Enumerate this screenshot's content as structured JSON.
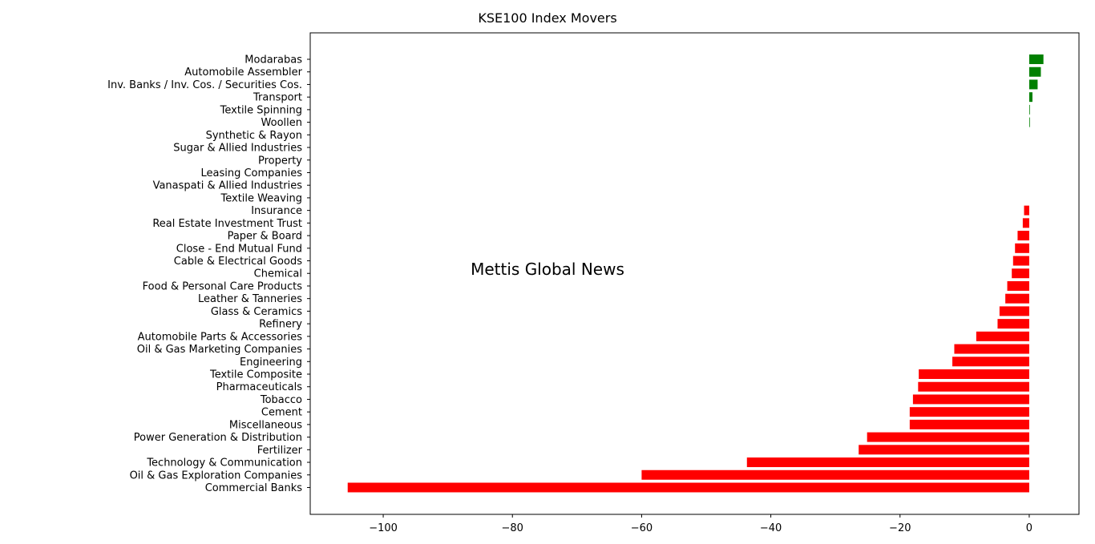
{
  "chart_data": {
    "type": "bar",
    "orientation": "horizontal",
    "title": "KSE100 Index Movers",
    "watermark": "Mettis Global News",
    "xlabel": "",
    "ylabel": "",
    "xlim": [
      -111.3,
      7.7
    ],
    "xticks": [
      -100,
      -80,
      -60,
      -40,
      -20,
      0
    ],
    "xtick_labels": [
      "−100",
      "−80",
      "−60",
      "−40",
      "−20",
      "0"
    ],
    "grid": false,
    "legend": "none",
    "colors": {
      "positive": "#008000",
      "negative": "#ff0000",
      "watermark": "#f2d27a"
    },
    "categories": [
      "Modarabas",
      "Automobile Assembler",
      "Inv. Banks / Inv. Cos. / Securities Cos.",
      "Transport",
      "Textile Spinning",
      "Woollen",
      "Synthetic & Rayon",
      "Sugar & Allied Industries",
      "Property",
      "Leasing Companies",
      "Vanaspati & Allied Industries",
      "Textile Weaving",
      "Insurance",
      "Real Estate Investment Trust",
      "Paper & Board",
      "Close - End Mutual Fund",
      "Cable & Electrical Goods",
      "Chemical",
      "Food & Personal Care Products",
      "Leather & Tanneries",
      "Glass & Ceramics",
      "Refinery",
      "Automobile Parts & Accessories",
      "Oil & Gas Marketing Companies",
      "Engineering",
      "Textile Composite",
      "Pharmaceuticals",
      "Tobacco",
      "Cement",
      "Miscellaneous",
      "Power Generation & Distribution",
      "Fertilizer",
      "Technology & Communication",
      "Oil & Gas Exploration Companies",
      "Commercial Banks"
    ],
    "values": [
      2.2,
      1.8,
      1.3,
      0.5,
      0.1,
      0.1,
      0,
      0,
      0,
      0,
      0,
      0,
      -0.8,
      -1.0,
      -1.8,
      -2.2,
      -2.5,
      -2.7,
      -3.4,
      -3.7,
      -4.6,
      -4.9,
      -8.2,
      -11.6,
      -11.9,
      -17.1,
      -17.2,
      -18.0,
      -18.5,
      -18.5,
      -25.1,
      -26.4,
      -43.7,
      -60.0,
      -105.5
    ]
  }
}
